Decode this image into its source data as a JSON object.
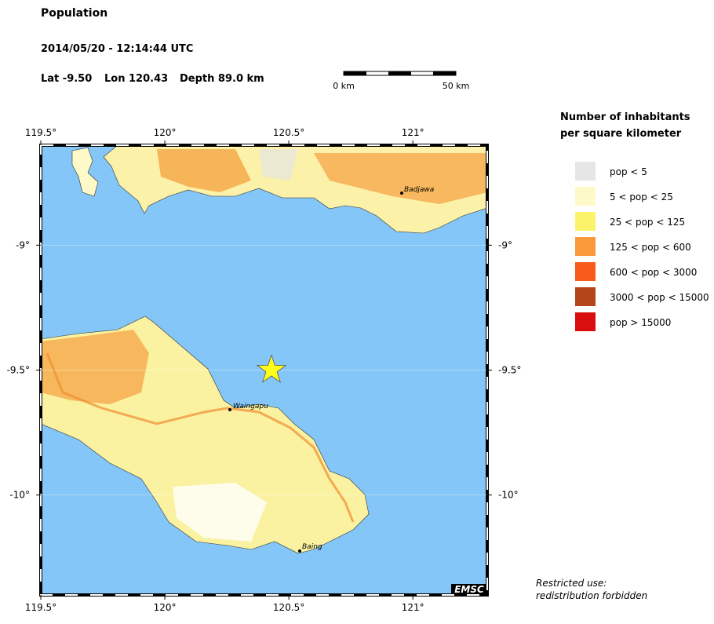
{
  "header": {
    "title": "Population",
    "datetime": "2014/05/20 - 12:14:44 UTC",
    "lat_label": "Lat -9.50",
    "lon_label": "Lon 120.43",
    "depth_label": "Depth  89.0 km"
  },
  "scale_bar": {
    "start": "0 km",
    "end": "50 km"
  },
  "map": {
    "xlim": [
      119.5,
      121.3
    ],
    "ylim": [
      -8.6,
      -10.4
    ],
    "xticks": [
      {
        "value": 119.5,
        "label": "119.5°"
      },
      {
        "value": 120,
        "label": "120°"
      },
      {
        "value": 120.5,
        "label": "120.5°"
      },
      {
        "value": 121,
        "label": "121°"
      }
    ],
    "yticks": [
      {
        "value": -9,
        "label": "-9°"
      },
      {
        "value": -9.5,
        "label": "-9.5°"
      },
      {
        "value": -10,
        "label": "-10°"
      }
    ],
    "event": {
      "lon": 120.43,
      "lat": -9.5
    },
    "cities": [
      "Badjawa",
      "Waingapu",
      "Baing"
    ],
    "logo": "EMSC"
  },
  "legend": {
    "title": [
      "Number of inhabitants",
      "per square kilometer"
    ],
    "items": [
      {
        "label": "pop < 5",
        "color": "#e6e6e6"
      },
      {
        "label": "5 < pop < 25",
        "color": "#fdf9c8"
      },
      {
        "label": "25 < pop < 125",
        "color": "#fbf46a"
      },
      {
        "label": "125 < pop < 600",
        "color": "#f9993a"
      },
      {
        "label": "600 < pop < 3000",
        "color": "#f95b1a"
      },
      {
        "label": "3000 < pop < 15000",
        "color": "#b4441a"
      },
      {
        "label": "pop > 15000",
        "color": "#d90e0e"
      }
    ]
  },
  "footer": [
    "Restricted use:",
    "redistribution forbidden"
  ]
}
